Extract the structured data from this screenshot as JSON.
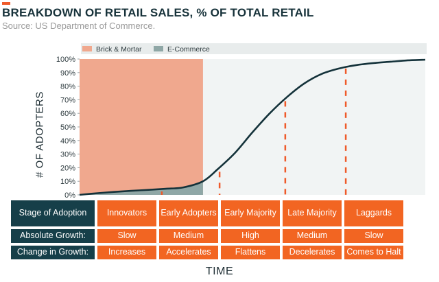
{
  "title": "BREAKDOWN OF RETAIL SALES, % OF TOTAL RETAIL",
  "subtitle": "Source: US Department of Commerce.",
  "colors": {
    "accent": "#ef5a2a",
    "brick_mortar": "#f0a88e",
    "ecommerce": "#8fa7a6",
    "curve": "#14323a",
    "dashes": "#ef5a2a",
    "plot_bg": "#f1f4f4",
    "label_bg": "#163f49",
    "value_bg": "#f26522"
  },
  "chart_data": {
    "type": "area",
    "title": "BREAKDOWN OF RETAIL SALES, % OF TOTAL RETAIL",
    "xlabel": "TIME",
    "ylabel": "# OF ADOPTERS",
    "ylim": [
      0,
      100
    ],
    "y_ticks": [
      "0%",
      "10%",
      "20%",
      "30%",
      "40%",
      "50%",
      "60%",
      "70%",
      "80%",
      "90%",
      "100%"
    ],
    "legend": [
      "Brick & Mortar",
      "E-Commerce"
    ],
    "legend_position": "top-left",
    "brick_mortar_share_of_time": 0.357,
    "curve": {
      "name": "Adoption",
      "x": [
        0,
        0.05,
        0.1,
        0.15,
        0.2,
        0.25,
        0.3,
        0.357,
        0.4,
        0.45,
        0.5,
        0.55,
        0.6,
        0.65,
        0.7,
        0.75,
        0.8,
        0.85,
        0.9,
        0.95,
        1.0
      ],
      "y": [
        0,
        1.2,
        2.2,
        3.0,
        3.7,
        4.5,
        5.5,
        10,
        19,
        31,
        46,
        60,
        72,
        82,
        89,
        93,
        95.5,
        97,
        98,
        99,
        99.5
      ]
    },
    "segment_boundaries": [
      {
        "x": 0.238,
        "y": 2.5
      },
      {
        "x": 0.405,
        "y": 17
      },
      {
        "x": 0.595,
        "y": 69
      },
      {
        "x": 0.77,
        "y": 93
      }
    ]
  },
  "table": {
    "rows": [
      {
        "label": "Stage of Adoption",
        "values": [
          "Innovators",
          "Early Adopters",
          "Early Majority",
          "Late Majority",
          "Laggards"
        ]
      },
      {
        "label": "Absolute Growth:",
        "values": [
          "Slow",
          "Medium",
          "High",
          "Medium",
          "Slow"
        ]
      },
      {
        "label": "Change in Growth:",
        "values": [
          "Increases",
          "Accelerates",
          "Flattens",
          "Decelerates",
          "Comes to Halt"
        ]
      }
    ]
  }
}
